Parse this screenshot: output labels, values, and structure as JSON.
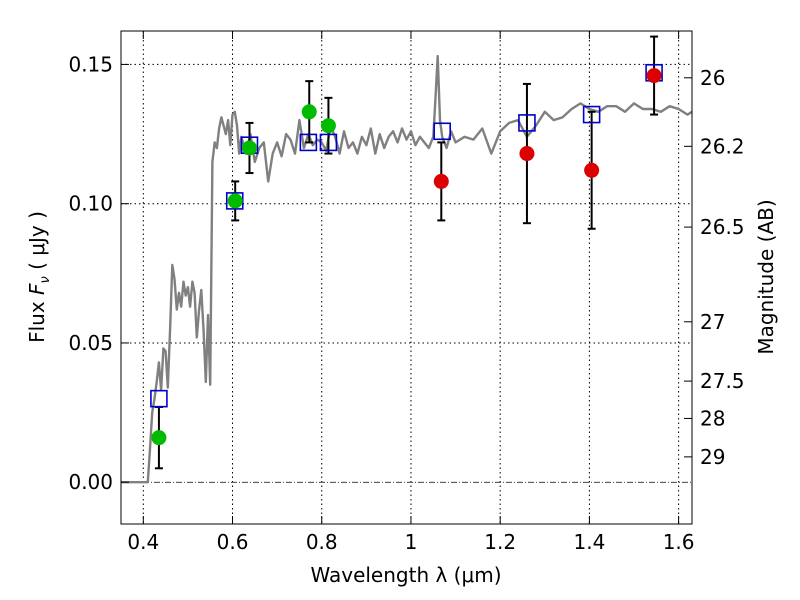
{
  "chart_data": {
    "type": "scatter",
    "xlabel": "Wavelength  λ (μm)",
    "ylabel_parts": {
      "prefix": "Flux  ",
      "symbol": "F",
      "subscript": "ν",
      "suffix": "  ( μJy )"
    },
    "ylabel_right": "Magnitude (AB)",
    "xlim": [
      0.35,
      1.63
    ],
    "ylim": [
      -0.015,
      0.162
    ],
    "grid": true,
    "x_ticks": [
      {
        "v": 0.4,
        "label": "0.4"
      },
      {
        "v": 0.6,
        "label": "0.6"
      },
      {
        "v": 0.8,
        "label": "0.8"
      },
      {
        "v": 1.0,
        "label": "1"
      },
      {
        "v": 1.2,
        "label": "1.2"
      },
      {
        "v": 1.4,
        "label": "1.4"
      },
      {
        "v": 1.6,
        "label": "1.6"
      }
    ],
    "y_ticks": [
      {
        "v": 0.0,
        "label": "0.00"
      },
      {
        "v": 0.05,
        "label": "0.05"
      },
      {
        "v": 0.1,
        "label": "0.10"
      },
      {
        "v": 0.15,
        "label": "0.15"
      }
    ],
    "y2_ticks": [
      {
        "flux": 0.1452,
        "label": "26"
      },
      {
        "flux": 0.1206,
        "label": "26.2"
      },
      {
        "flux": 0.0916,
        "label": "26.5"
      },
      {
        "flux": 0.0576,
        "label": "27"
      },
      {
        "flux": 0.0363,
        "label": "27.5"
      },
      {
        "flux": 0.0229,
        "label": "28"
      },
      {
        "flux": 0.0091,
        "label": "29"
      }
    ],
    "series": [
      {
        "kind": "model_spectrum",
        "color": "#808080",
        "x": [
          0.35,
          0.38,
          0.41,
          0.415,
          0.42,
          0.425,
          0.43,
          0.435,
          0.44,
          0.445,
          0.45,
          0.455,
          0.46,
          0.465,
          0.47,
          0.475,
          0.48,
          0.485,
          0.49,
          0.495,
          0.5,
          0.505,
          0.51,
          0.515,
          0.52,
          0.525,
          0.53,
          0.535,
          0.54,
          0.545,
          0.55,
          0.555,
          0.56,
          0.565,
          0.57,
          0.575,
          0.58,
          0.585,
          0.59,
          0.595,
          0.6,
          0.605,
          0.61,
          0.615,
          0.62,
          0.63,
          0.64,
          0.65,
          0.66,
          0.67,
          0.68,
          0.69,
          0.7,
          0.71,
          0.72,
          0.73,
          0.74,
          0.75,
          0.76,
          0.77,
          0.78,
          0.79,
          0.8,
          0.81,
          0.82,
          0.83,
          0.84,
          0.85,
          0.86,
          0.87,
          0.88,
          0.89,
          0.9,
          0.91,
          0.92,
          0.93,
          0.94,
          0.95,
          0.96,
          0.97,
          0.98,
          0.99,
          1.0,
          1.01,
          1.02,
          1.03,
          1.04,
          1.05,
          1.055,
          1.06,
          1.065,
          1.07,
          1.08,
          1.09,
          1.1,
          1.12,
          1.14,
          1.16,
          1.18,
          1.2,
          1.22,
          1.24,
          1.26,
          1.28,
          1.3,
          1.32,
          1.34,
          1.36,
          1.38,
          1.4,
          1.42,
          1.44,
          1.46,
          1.48,
          1.5,
          1.52,
          1.54,
          1.56,
          1.58,
          1.6,
          1.62,
          1.63
        ],
        "y": [
          0.0,
          0.0,
          0.0,
          0.012,
          0.025,
          0.03,
          0.036,
          0.043,
          0.033,
          0.048,
          0.047,
          0.034,
          0.055,
          0.078,
          0.073,
          0.062,
          0.068,
          0.063,
          0.072,
          0.067,
          0.07,
          0.063,
          0.072,
          0.068,
          0.052,
          0.062,
          0.069,
          0.055,
          0.036,
          0.06,
          0.035,
          0.115,
          0.122,
          0.12,
          0.127,
          0.131,
          0.128,
          0.125,
          0.13,
          0.121,
          0.132,
          0.133,
          0.128,
          0.118,
          0.124,
          0.118,
          0.125,
          0.115,
          0.12,
          0.122,
          0.108,
          0.118,
          0.122,
          0.117,
          0.125,
          0.123,
          0.118,
          0.13,
          0.12,
          0.125,
          0.121,
          0.123,
          0.122,
          0.119,
          0.128,
          0.124,
          0.118,
          0.126,
          0.12,
          0.122,
          0.118,
          0.124,
          0.121,
          0.127,
          0.118,
          0.125,
          0.12,
          0.124,
          0.126,
          0.122,
          0.127,
          0.123,
          0.126,
          0.121,
          0.124,
          0.122,
          0.12,
          0.124,
          0.138,
          0.153,
          0.13,
          0.124,
          0.12,
          0.126,
          0.122,
          0.124,
          0.123,
          0.127,
          0.118,
          0.126,
          0.129,
          0.13,
          0.124,
          0.128,
          0.133,
          0.13,
          0.131,
          0.134,
          0.136,
          0.134,
          0.133,
          0.135,
          0.135,
          0.133,
          0.136,
          0.134,
          0.134,
          0.133,
          0.135,
          0.134,
          0.132,
          0.133
        ]
      },
      {
        "kind": "model_photometry",
        "marker": "open-square",
        "color": "#0000cc",
        "x": [
          0.435,
          0.605,
          0.638,
          0.77,
          0.815,
          1.07,
          1.26,
          1.405,
          1.545
        ],
        "y": [
          0.03,
          0.101,
          0.121,
          0.122,
          0.122,
          0.126,
          0.129,
          0.132,
          0.147
        ]
      },
      {
        "kind": "observed_detections",
        "marker": "filled-circle",
        "color": "#00bb00",
        "x": [
          0.435,
          0.606,
          0.638,
          0.772,
          0.815
        ],
        "y": [
          0.016,
          0.101,
          0.12,
          0.133,
          0.128
        ],
        "err": [
          0.011,
          0.007,
          0.009,
          0.011,
          0.01
        ]
      },
      {
        "kind": "observed_near_ir",
        "marker": "filled-circle",
        "color": "#dd0000",
        "x": [
          1.068,
          1.26,
          1.405,
          1.545
        ],
        "y": [
          0.108,
          0.118,
          0.112,
          0.146
        ],
        "err": [
          0.014,
          0.025,
          0.021,
          0.014
        ]
      }
    ]
  }
}
